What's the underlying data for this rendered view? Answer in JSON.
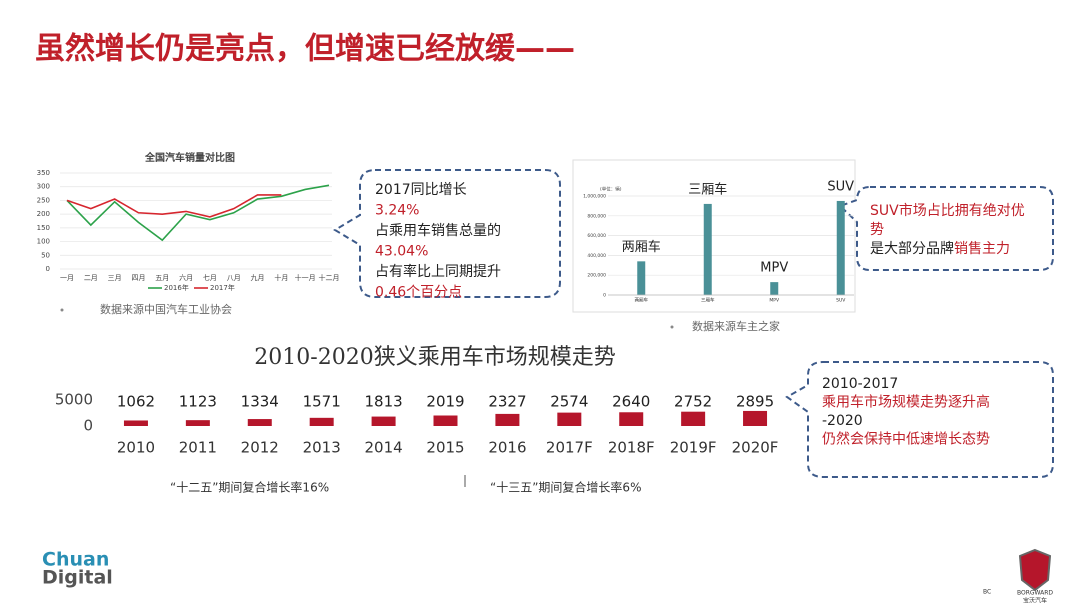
{
  "title": "虽然增长仍是亮点，但增速已经放缓——",
  "chart_data": [
    {
      "type": "line",
      "title": "全国汽车销量对比图",
      "categories": [
        "一月",
        "二月",
        "三月",
        "四月",
        "五月",
        "六月",
        "七月",
        "八月",
        "九月",
        "十月",
        "十一月",
        "十二月"
      ],
      "series": [
        {
          "name": "2016年",
          "color": "#2ca24a",
          "values": [
            250,
            160,
            245,
            170,
            105,
            200,
            180,
            205,
            255,
            265,
            290,
            305
          ]
        },
        {
          "name": "2017年",
          "color": "#d6262e",
          "values": [
            250,
            220,
            255,
            205,
            200,
            210,
            190,
            220,
            270,
            270,
            null,
            null
          ]
        }
      ],
      "ylim": [
        0,
        350
      ],
      "yticks": [
        0,
        50,
        100,
        150,
        200,
        250,
        300,
        350
      ],
      "grid": true,
      "source": "数据来源中国汽车工业协会"
    },
    {
      "type": "bar",
      "y_label": "(单位：辆)",
      "categories": [
        "两厢车",
        "三厢车",
        "MPV",
        "SUV"
      ],
      "values": [
        340000,
        920000,
        130000,
        950000
      ],
      "color": "#4a9097",
      "ylim": [
        0,
        1000000
      ],
      "yticks": [
        0,
        {
          "value": 200000,
          "label": "200,000"
        },
        {
          "value": 400000,
          "label": "400,000"
        },
        {
          "value": 600000,
          "label": "600,000"
        },
        {
          "value": 800000,
          "label": "800,000"
        },
        {
          "value": 1000000,
          "label": "1,000,000"
        }
      ],
      "grid": true,
      "source": "数据来源车主之家"
    },
    {
      "type": "bar",
      "title": "2010-2020狭义乘用车市场规模走势",
      "categories": [
        "2010",
        "2011",
        "2012",
        "2013",
        "2014",
        "2015",
        "2016",
        "2017F",
        "2018F",
        "2019F",
        "2020F"
      ],
      "values": [
        1062,
        1123,
        1334,
        1571,
        1813,
        2019,
        2327,
        2574,
        2640,
        2752,
        2895
      ],
      "color": "#b5162b",
      "ylim": [
        0,
        5000
      ],
      "yticks": [
        0,
        5000
      ],
      "grid": false,
      "notes": [
        "“十二五”期间复合增长率16%",
        "“十三五”期间复合增长率6%"
      ]
    }
  ],
  "callouts": [
    {
      "lines": [
        [
          {
            "text": "2017同比增长",
            "color": "#222222"
          }
        ],
        [
          {
            "text": "3.24%",
            "color": "#c0202a"
          }
        ],
        [
          {
            "text": "占乘用车销售总量的",
            "color": "#222222"
          }
        ],
        [
          {
            "text": "43.04%",
            "color": "#c0202a"
          }
        ],
        [
          {
            "text": "占有率比上同期提升",
            "color": "#222222"
          }
        ],
        [
          {
            "text": "0.46个百分点",
            "color": "#c0202a"
          }
        ]
      ]
    },
    {
      "lines": [
        [
          {
            "text": "SUV市场占比拥有绝对优",
            "color": "#c0202a"
          }
        ],
        [
          {
            "text": "势",
            "color": "#c0202a"
          }
        ],
        [
          {
            "text": "是大部分品牌",
            "color": "#222222"
          },
          {
            "text": "销售主力",
            "color": "#c0202a"
          }
        ]
      ]
    },
    {
      "lines": [
        [
          {
            "text": "2010-2017",
            "color": "#222222"
          }
        ],
        [
          {
            "text": "乘用车市场规模走势逐升高",
            "color": "#c0202a"
          }
        ],
        [
          {
            "text": "-2020",
            "color": "#222222"
          }
        ],
        [
          {
            "text": "仍然会保持中低速增长态势",
            "color": "#c0202a"
          }
        ]
      ]
    }
  ],
  "logo": {
    "line1": "Chuan",
    "line2": "Digital"
  },
  "brand": {
    "code": "BC",
    "name": "BORGWARD",
    "cn": "宝沃汽车"
  }
}
